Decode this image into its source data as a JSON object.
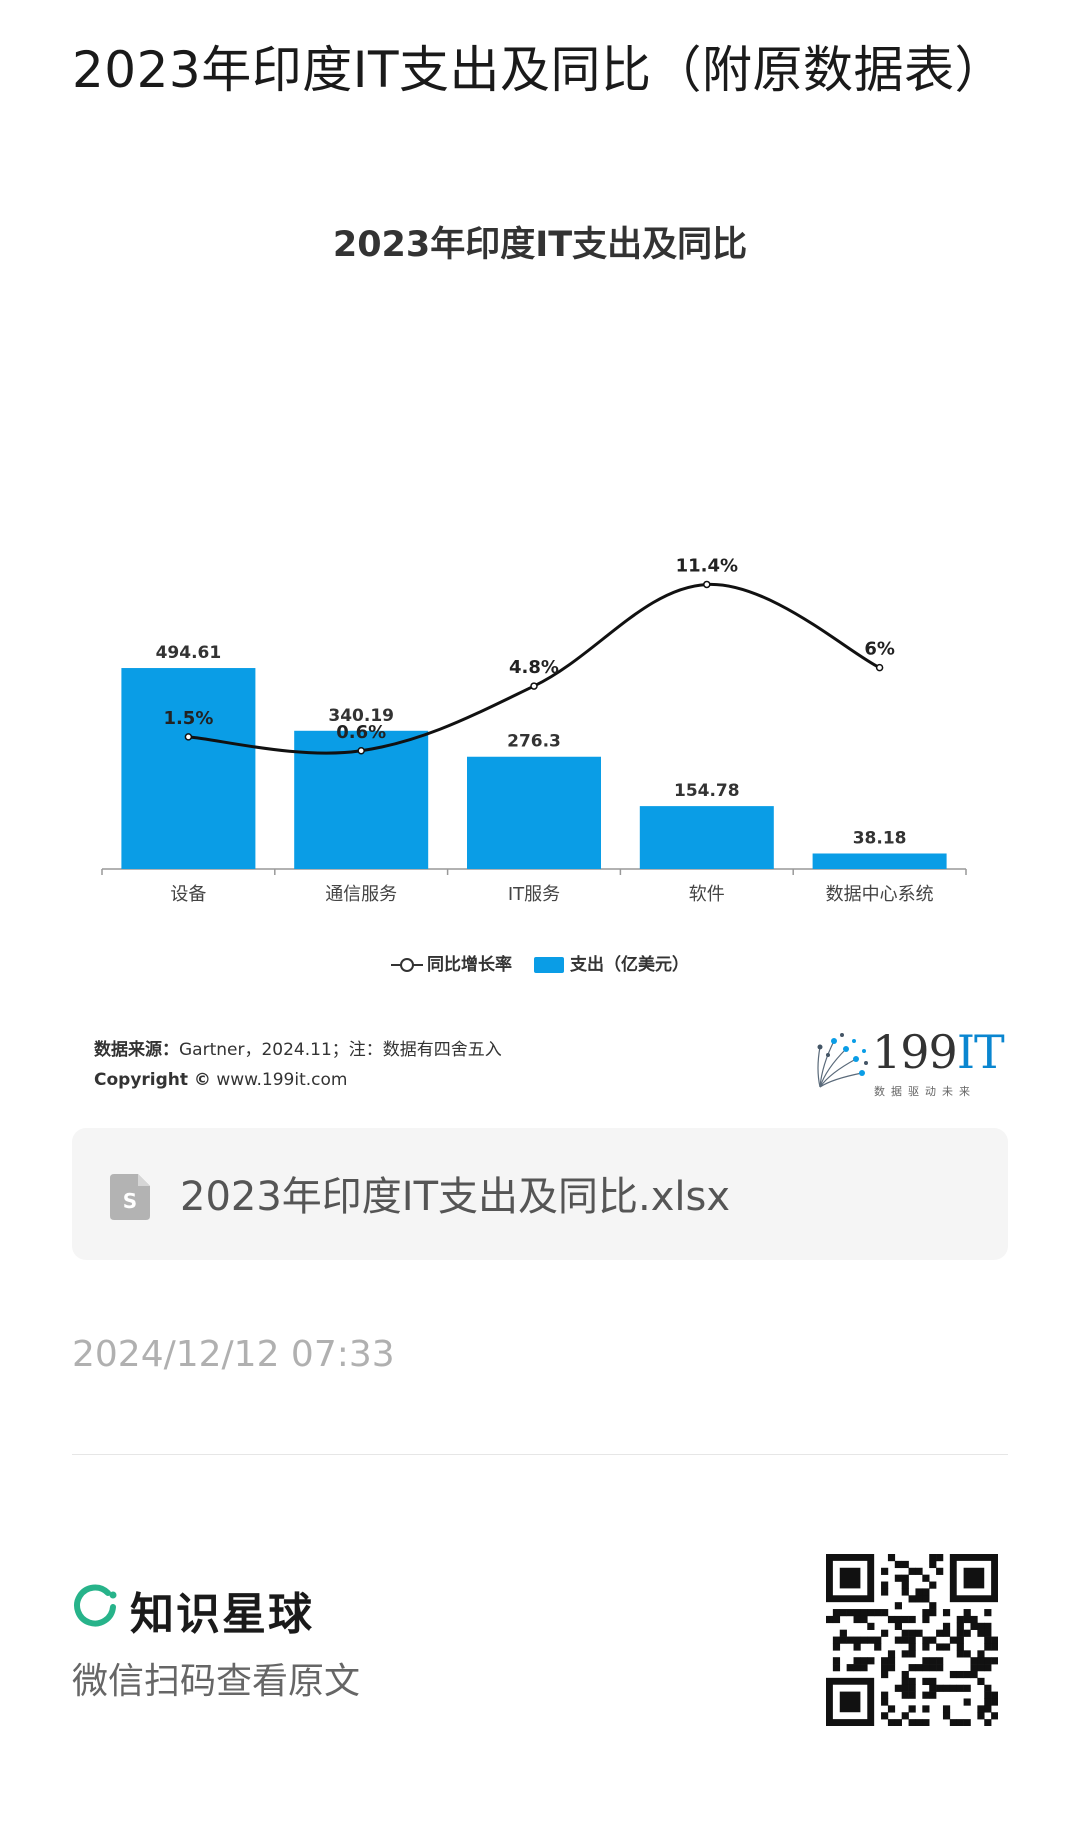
{
  "post": {
    "title": "2023年印度IT支出及同比（附原数据表）",
    "attachment_name": "2023年印度IT支出及同比.xlsx",
    "timestamp": "2024/12/12 07:33"
  },
  "chart": {
    "source_label": "数据来源：",
    "source_text": "Gartner，2024.11；注：数据有四舍五入",
    "copyright_label": "Copyright ©",
    "copyright_text": "www.199it.com",
    "brand_number": "199",
    "brand_it": "IT",
    "brand_slogan": "数据驱动未来"
  },
  "chart_data": {
    "type": "bar",
    "title": "2023年印度IT支出及同比",
    "categories": [
      "设备",
      "通信服务",
      "IT服务",
      "软件",
      "数据中心系统"
    ],
    "series": [
      {
        "name": "支出（亿美元）",
        "type": "bar",
        "values": [
          494.61,
          340.19,
          276.3,
          154.78,
          38.18
        ],
        "labels": [
          "494.61",
          "340.19",
          "276.3",
          "154.78",
          "38.18"
        ],
        "color": "#0a9de6"
      },
      {
        "name": "同比增长率",
        "type": "line",
        "values": [
          1.5,
          0.6,
          4.8,
          11.4,
          6
        ],
        "labels": [
          "1.5%",
          "0.6%",
          "4.8%",
          "11.4%",
          "6%"
        ],
        "color": "#111111"
      }
    ],
    "legend_position": "bottom",
    "grid": false
  },
  "footer": {
    "brand_name": "知识星球",
    "scan_hint": "微信扫码查看原文",
    "accent_color": "#27b38a"
  },
  "icons": {
    "file": "spreadsheet-file-icon",
    "qr": "qr-code-icon"
  }
}
